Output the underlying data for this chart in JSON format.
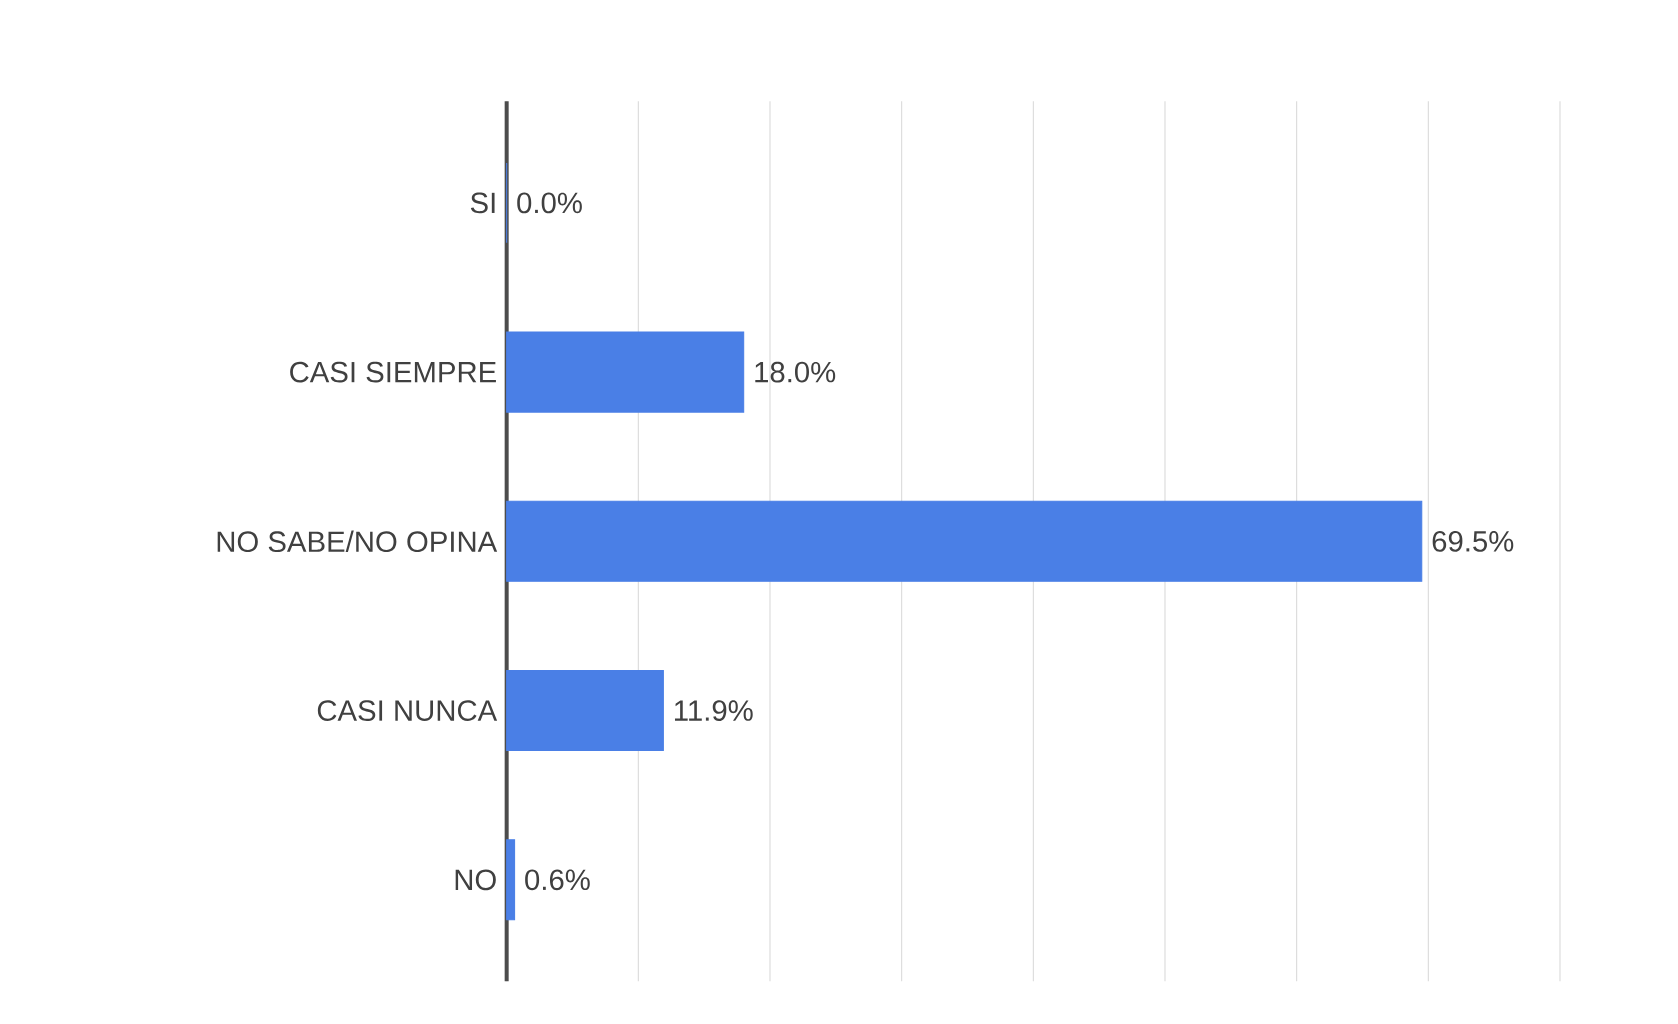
{
  "chart_data": {
    "type": "bar",
    "orientation": "horizontal",
    "categories": [
      "SI",
      "CASI SIEMPRE",
      "NO SABE/NO OPINA",
      "CASI NUNCA",
      "NO"
    ],
    "values": [
      0.0,
      18.0,
      69.5,
      11.9,
      0.6
    ],
    "value_labels": [
      "0.0%",
      "18.0%",
      "69.5%",
      "11.9%",
      "0.6%"
    ],
    "color": "#4a7fe6",
    "xlim": [
      0,
      80
    ],
    "xticks": [
      {
        "value": 0,
        "label": null
      },
      {
        "value": 10,
        "label": null
      },
      {
        "value": 20,
        "label": null
      },
      {
        "value": 30,
        "label": null
      },
      {
        "value": 40,
        "label": null
      },
      {
        "value": 50,
        "label": null
      },
      {
        "value": 60,
        "label": null
      },
      {
        "value": 70,
        "label": null
      },
      {
        "value": 80,
        "label": null
      }
    ],
    "grid": "x",
    "tick_labels": "y"
  }
}
